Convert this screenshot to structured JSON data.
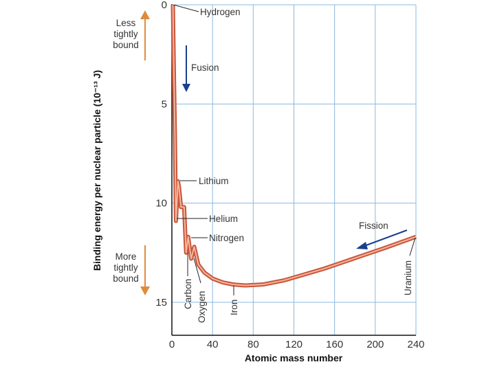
{
  "chart_data": {
    "type": "line",
    "title": "",
    "xlabel": "Atomic mass number",
    "ylabel": "Binding energy per nuclear particle (10⁻¹³ J)",
    "xlim": [
      0,
      240
    ],
    "ylim": [
      0,
      16.6
    ],
    "y_inverted": true,
    "grid": true,
    "x_ticks": [
      "0",
      "40",
      "80",
      "120",
      "160",
      "200",
      "240"
    ],
    "y_ticks": [
      "0",
      "5",
      "10",
      "15"
    ],
    "series": [
      {
        "name": "binding energy",
        "color": "#e0735a",
        "points": [
          [
            1,
            0
          ],
          [
            2,
            3.5
          ],
          [
            3,
            6.5
          ],
          [
            4,
            10.9
          ],
          [
            6,
            8.9
          ],
          [
            7,
            9.2
          ],
          [
            9,
            10.2
          ],
          [
            12,
            10.2
          ],
          [
            14,
            12.5
          ],
          [
            16,
            11.7
          ],
          [
            19,
            12.8
          ],
          [
            22,
            12.2
          ],
          [
            26,
            13.1
          ],
          [
            32,
            13.5
          ],
          [
            40,
            13.8
          ],
          [
            50,
            14.0
          ],
          [
            60,
            14.1
          ],
          [
            72,
            14.15
          ],
          [
            90,
            14.1
          ],
          [
            110,
            13.9
          ],
          [
            130,
            13.6
          ],
          [
            150,
            13.3
          ],
          [
            170,
            12.95
          ],
          [
            190,
            12.6
          ],
          [
            210,
            12.25
          ],
          [
            240,
            11.7
          ]
        ]
      }
    ],
    "annotations": [
      {
        "text": "Hydrogen",
        "x": 1,
        "y": 0
      },
      {
        "text": "Lithium",
        "x": 7,
        "y": 8.9
      },
      {
        "text": "Helium",
        "x": 4,
        "y": 10.9
      },
      {
        "text": "Nitrogen",
        "x": 16,
        "y": 11.7
      },
      {
        "text": "Carbon",
        "x": 12,
        "y": 12.5
      },
      {
        "text": "Oxygen",
        "x": 16,
        "y": 12.8
      },
      {
        "text": "Iron",
        "x": 56,
        "y": 14.1
      },
      {
        "text": "Uranium",
        "x": 238,
        "y": 11.7
      }
    ],
    "side_labels": {
      "top": [
        "Less",
        "tightly",
        "bound"
      ],
      "bottom": [
        "More",
        "tightly",
        "bound"
      ]
    },
    "arrows": {
      "fusion": "Fusion",
      "fission": "Fission"
    },
    "colors": {
      "grid": "#8ab8e0",
      "curve": "#e0735a",
      "curve_edge": "#b84a2e",
      "bound_arrow": "#e08a3c",
      "process_arrow": "#1a3f8c"
    }
  }
}
